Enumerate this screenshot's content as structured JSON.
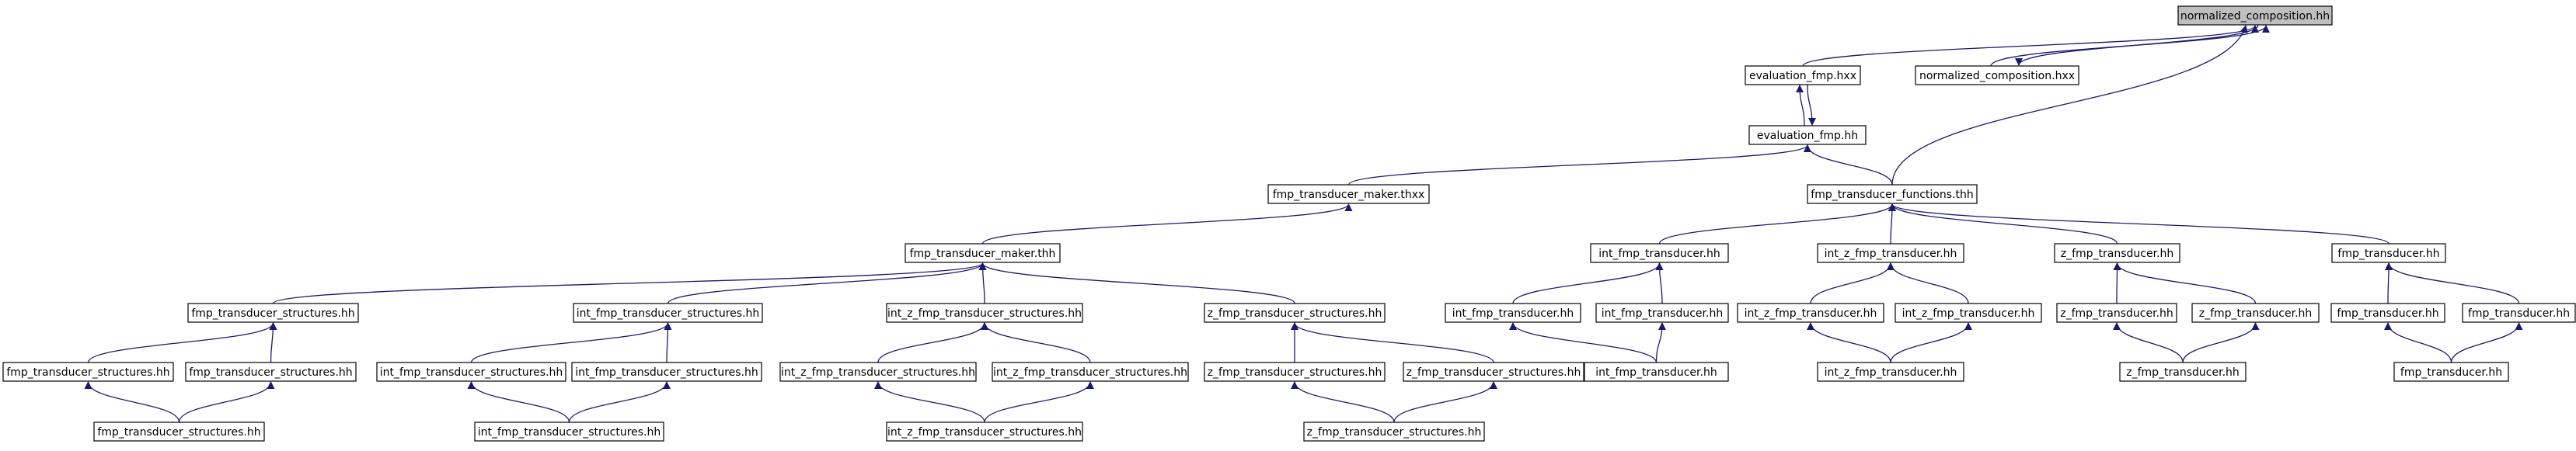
{
  "nodes": [
    {
      "id": "n0",
      "label": "normalized_composition.hh",
      "root": true
    },
    {
      "id": "n1",
      "label": "evaluation_fmp.hxx"
    },
    {
      "id": "n2",
      "label": "normalized_composition.hxx"
    },
    {
      "id": "n3",
      "label": "evaluation_fmp.hh"
    },
    {
      "id": "n4",
      "label": "fmp_transducer_maker.thxx"
    },
    {
      "id": "n5",
      "label": "fmp_transducer_functions.thh"
    },
    {
      "id": "n6",
      "label": "fmp_transducer_maker.thh"
    },
    {
      "id": "n7",
      "label": "int_fmp_transducer.hh"
    },
    {
      "id": "n8",
      "label": "int_z_fmp_transducer.hh"
    },
    {
      "id": "n9",
      "label": "z_fmp_transducer.hh"
    },
    {
      "id": "n10",
      "label": "fmp_transducer.hh"
    },
    {
      "id": "n11",
      "label": "fmp_transducer_structures.hh"
    },
    {
      "id": "n12",
      "label": "int_fmp_transducer_structures.hh"
    },
    {
      "id": "n13",
      "label": "int_z_fmp_transducer_structures.hh"
    },
    {
      "id": "n14",
      "label": "z_fmp_transducer_structures.hh"
    },
    {
      "id": "n15",
      "label": "int_fmp_transducer.hh"
    },
    {
      "id": "n16",
      "label": "int_fmp_transducer.hh"
    },
    {
      "id": "n17",
      "label": "int_z_fmp_transducer.hh"
    },
    {
      "id": "n18",
      "label": "int_z_fmp_transducer.hh"
    },
    {
      "id": "n19",
      "label": "z_fmp_transducer.hh"
    },
    {
      "id": "n20",
      "label": "z_fmp_transducer.hh"
    },
    {
      "id": "n21",
      "label": "fmp_transducer.hh"
    },
    {
      "id": "n22",
      "label": "fmp_transducer.hh"
    },
    {
      "id": "n23",
      "label": "fmp_transducer_structures.hh"
    },
    {
      "id": "n24",
      "label": "fmp_transducer_structures.hh"
    },
    {
      "id": "n25",
      "label": "int_fmp_transducer_structures.hh"
    },
    {
      "id": "n26",
      "label": "int_fmp_transducer_structures.hh"
    },
    {
      "id": "n27",
      "label": "int_z_fmp_transducer_structures.hh"
    },
    {
      "id": "n28",
      "label": "int_z_fmp_transducer_structures.hh"
    },
    {
      "id": "n29",
      "label": "z_fmp_transducer_structures.hh"
    },
    {
      "id": "n30",
      "label": "z_fmp_transducer_structures.hh"
    },
    {
      "id": "n31",
      "label": "int_fmp_transducer.hh"
    },
    {
      "id": "n32",
      "label": "int_z_fmp_transducer.hh"
    },
    {
      "id": "n33",
      "label": "z_fmp_transducer.hh"
    },
    {
      "id": "n34",
      "label": "fmp_transducer.hh"
    },
    {
      "id": "n35",
      "label": "fmp_transducer_structures.hh"
    },
    {
      "id": "n36",
      "label": "int_fmp_transducer_structures.hh"
    },
    {
      "id": "n37",
      "label": "int_z_fmp_transducer_structures.hh"
    },
    {
      "id": "n38",
      "label": "z_fmp_transducer_structures.hh"
    }
  ],
  "edges": [
    {
      "from": "n1",
      "to": "n0"
    },
    {
      "from": "n2",
      "to": "n0"
    },
    {
      "from": "n0",
      "to": "n2"
    },
    {
      "from": "n5",
      "to": "n0"
    },
    {
      "from": "n3",
      "to": "n1"
    },
    {
      "from": "n1",
      "to": "n3"
    },
    {
      "from": "n4",
      "to": "n3"
    },
    {
      "from": "n5",
      "to": "n3"
    },
    {
      "from": "n6",
      "to": "n4"
    },
    {
      "from": "n7",
      "to": "n5"
    },
    {
      "from": "n8",
      "to": "n5"
    },
    {
      "from": "n9",
      "to": "n5"
    },
    {
      "from": "n10",
      "to": "n5"
    },
    {
      "from": "n11",
      "to": "n6"
    },
    {
      "from": "n12",
      "to": "n6"
    },
    {
      "from": "n13",
      "to": "n6"
    },
    {
      "from": "n14",
      "to": "n6"
    },
    {
      "from": "n15",
      "to": "n7"
    },
    {
      "from": "n16",
      "to": "n7"
    },
    {
      "from": "n17",
      "to": "n8"
    },
    {
      "from": "n18",
      "to": "n8"
    },
    {
      "from": "n19",
      "to": "n9"
    },
    {
      "from": "n20",
      "to": "n9"
    },
    {
      "from": "n21",
      "to": "n10"
    },
    {
      "from": "n22",
      "to": "n10"
    },
    {
      "from": "n23",
      "to": "n11"
    },
    {
      "from": "n24",
      "to": "n11"
    },
    {
      "from": "n25",
      "to": "n12"
    },
    {
      "from": "n26",
      "to": "n12"
    },
    {
      "from": "n27",
      "to": "n13"
    },
    {
      "from": "n28",
      "to": "n13"
    },
    {
      "from": "n29",
      "to": "n14"
    },
    {
      "from": "n30",
      "to": "n14"
    },
    {
      "from": "n31",
      "to": "n15"
    },
    {
      "from": "n31",
      "to": "n16"
    },
    {
      "from": "n32",
      "to": "n17"
    },
    {
      "from": "n32",
      "to": "n18"
    },
    {
      "from": "n33",
      "to": "n19"
    },
    {
      "from": "n33",
      "to": "n20"
    },
    {
      "from": "n34",
      "to": "n21"
    },
    {
      "from": "n34",
      "to": "n22"
    },
    {
      "from": "n35",
      "to": "n23"
    },
    {
      "from": "n35",
      "to": "n24"
    },
    {
      "from": "n36",
      "to": "n25"
    },
    {
      "from": "n36",
      "to": "n26"
    },
    {
      "from": "n37",
      "to": "n27"
    },
    {
      "from": "n37",
      "to": "n28"
    },
    {
      "from": "n38",
      "to": "n29"
    },
    {
      "from": "n38",
      "to": "n30"
    }
  ],
  "colors": {
    "edge": "#191970",
    "root_fill": "#bfbfbf",
    "node_fill": "#ffffff",
    "node_stroke": "#000000"
  }
}
